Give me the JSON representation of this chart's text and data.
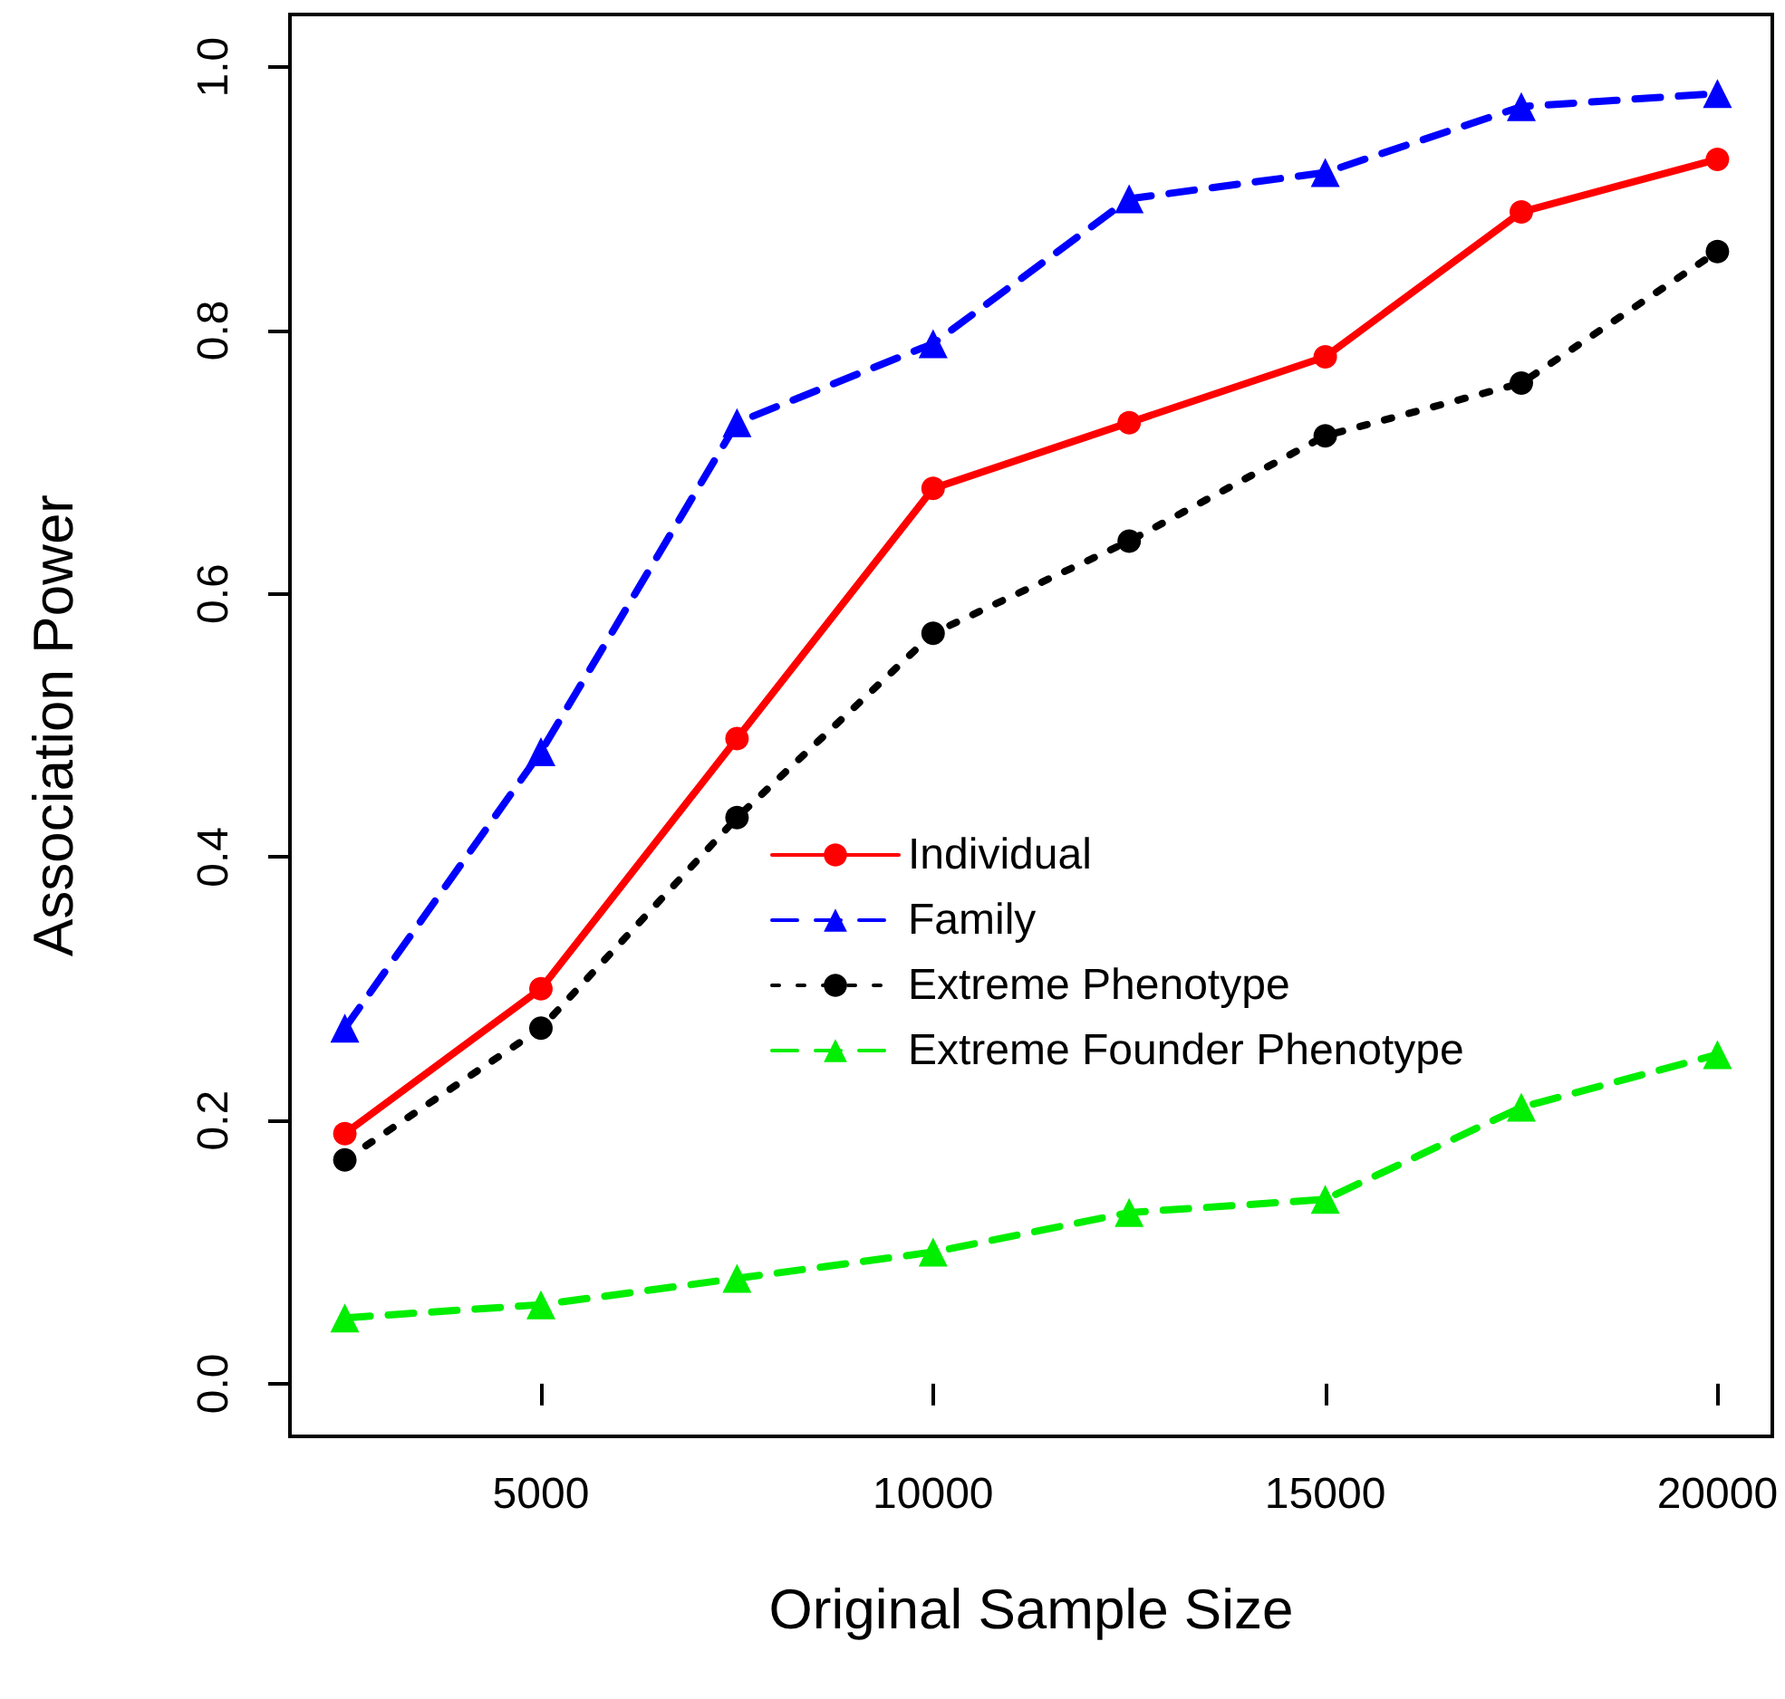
{
  "chart_data": {
    "type": "line",
    "xlabel": "Original Sample Size",
    "ylabel": "Association Power",
    "x": [
      2500,
      5000,
      7500,
      10000,
      12500,
      15000,
      17500,
      20000
    ],
    "series": [
      {
        "name": "Individual",
        "color": "#ff0000",
        "marker": "circle",
        "line_style": "solid",
        "values": [
          0.19,
          0.3,
          0.49,
          0.68,
          0.73,
          0.78,
          0.89,
          0.93
        ]
      },
      {
        "name": "Family",
        "color": "#0000ff",
        "marker": "triangle",
        "line_style": "dashed",
        "values": [
          0.27,
          0.48,
          0.73,
          0.79,
          0.9,
          0.92,
          0.97,
          0.98
        ]
      },
      {
        "name": "Extreme Phenotype",
        "color": "#000000",
        "marker": "circle",
        "line_style": "dotted",
        "values": [
          0.17,
          0.27,
          0.43,
          0.57,
          0.64,
          0.72,
          0.76,
          0.86
        ]
      },
      {
        "name": "Extreme Founder Phenotype",
        "color": "#00ee00",
        "marker": "triangle",
        "line_style": "dashed",
        "values": [
          0.05,
          0.06,
          0.08,
          0.1,
          0.13,
          0.14,
          0.21,
          0.25
        ]
      }
    ],
    "xlim": [
      1800,
      20700
    ],
    "xticks": [
      5000,
      10000,
      15000,
      20000
    ],
    "ylim": [
      -0.04,
      1.04
    ],
    "yticks": [
      {
        "value": 0,
        "label": "0.0"
      },
      {
        "value": 0.2,
        "label": "0.2"
      },
      {
        "value": 0.4,
        "label": "0.4"
      },
      {
        "value": 0.6,
        "label": "0.6"
      },
      {
        "value": 0.8,
        "label": "0.8"
      },
      {
        "value": 1,
        "label": "1.0"
      }
    ],
    "grid": false,
    "legend": "right"
  }
}
